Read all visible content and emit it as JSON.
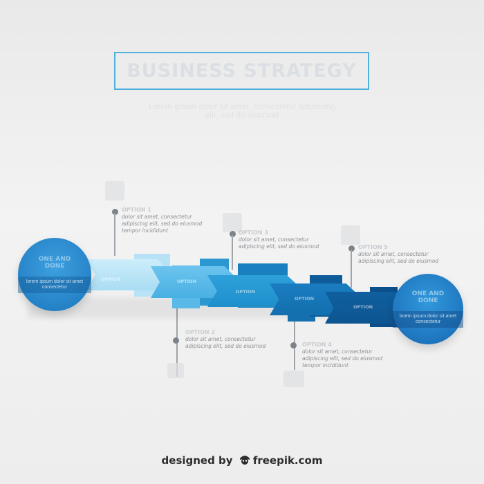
{
  "header": {
    "title": "BUSINESS STRATEGY",
    "subtitle": "Lorem ipsum dolor sit amet, consectetur adipiscing elit, sed do eiusmod"
  },
  "start_circle": {
    "title": "ONE AND DONE",
    "band": "lorem ipsum dolor sit amet consectetur"
  },
  "end_circle": {
    "title": "ONE AND DONE",
    "band": "lorem ipsum dolor sit amet consectetur"
  },
  "steps": [
    {
      "label": "OPTION",
      "heading": "OPTION 1",
      "text_lines": [
        "dolor sit amet, consectetur",
        "adipiscing elit, sed do eiusmod",
        "tempor incididunt"
      ],
      "icon": "cloud-icon"
    },
    {
      "label": "OPTION",
      "heading": "OPTION 2",
      "text_lines": [
        "dolor sit amet, consectetur",
        "adipiscing elit, sed do eiusmod"
      ],
      "icon": "bulb-icon"
    },
    {
      "label": "OPTION",
      "heading": "OPTION 3",
      "text_lines": [
        "dolor sit amet, consectetur",
        "adipiscing elit, sed do eiusmod"
      ],
      "icon": "people-icon"
    },
    {
      "label": "OPTION",
      "heading": "OPTION 4",
      "text_lines": [
        "dolor sit amet, consectetur",
        "adipiscing elit, sed do eiusmod",
        "tempor incididunt"
      ],
      "icon": "chart-icon"
    },
    {
      "label": "OPTION",
      "heading": "OPTION 5",
      "text_lines": [
        "dolor sit amet, consectetur",
        "adipiscing elit, sed do eiusmod"
      ],
      "icon": "gear-icon"
    }
  ],
  "colors": {
    "accent": "#4fb0de",
    "segment_1": "#a9dcf3",
    "segment_2": "#49b0e3",
    "segment_3": "#1e8fcb",
    "segment_4": "#136fae",
    "segment_5": "#0e5591",
    "start_circle": "#2b8fd2",
    "end_circle": "#2180cc"
  },
  "footer": {
    "text_before": "designed by",
    "brand": "freepik.com"
  }
}
